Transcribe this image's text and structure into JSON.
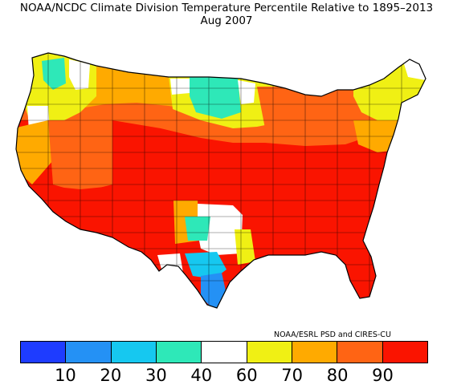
{
  "title": "NOAA/NCDC Climate Division Temperature Percentile Relative to 1895–2013",
  "subtitle": "Aug 2007",
  "credit": "NOAA/ESRL PSD and CIRES-CU",
  "legend": {
    "colors": [
      "#1e3cff",
      "#2491f5",
      "#16c8f0",
      "#2ee8b8",
      "#ffffff",
      "#f0f014",
      "#ffaa00",
      "#ff6414",
      "#fa1400"
    ],
    "ticks": [
      "10",
      "20",
      "30",
      "40",
      "60",
      "70",
      "80",
      "90"
    ]
  },
  "map": {
    "regions": [
      {
        "name": "Pacific Northwest coast",
        "percentile_class": "70-80"
      },
      {
        "name": "Washington Cascades",
        "percentile_class": "40-60"
      },
      {
        "name": "Northern Rockies",
        "percentile_class": "70-80"
      },
      {
        "name": "North Dakota / Minnesota",
        "percentile_class": "30-40"
      },
      {
        "name": "Upper Midwest",
        "percentile_class": "60-70"
      },
      {
        "name": "New England",
        "percentile_class": "60-70"
      },
      {
        "name": "Great Lakes",
        "percentile_class": "80-90"
      },
      {
        "name": "California / Great Basin",
        "percentile_class": "80-90"
      },
      {
        "name": "Southwest",
        "percentile_class": "90+"
      },
      {
        "name": "Southeast / Ohio Valley",
        "percentile_class": "90+"
      },
      {
        "name": "Central Texas",
        "percentile_class": "30-40"
      },
      {
        "name": "South Texas coast",
        "percentile_class": "10-20"
      },
      {
        "name": "West Texas / New Mexico border",
        "percentile_class": "40-60"
      }
    ]
  }
}
